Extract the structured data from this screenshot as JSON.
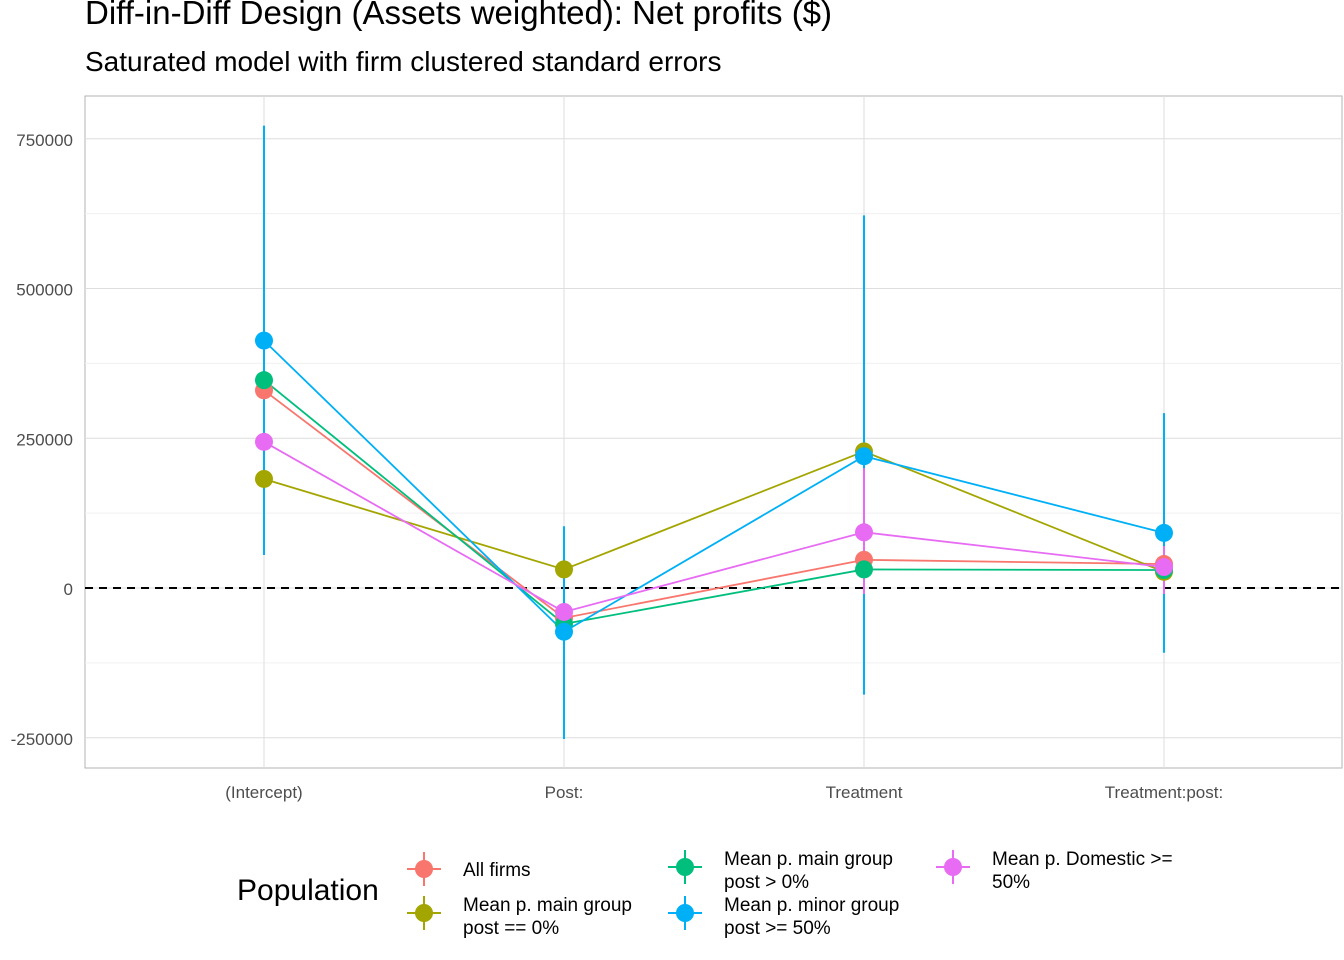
{
  "chart_data": {
    "type": "scatter",
    "title": "Diff-in-Diff Design (Assets weighted): Net profits  ($)",
    "subtitle": "Saturated model with firm clustered standard errors",
    "xlabel": "",
    "ylabel": "",
    "categories": [
      "(Intercept)",
      "Post:",
      "Treatment",
      "Treatment:post:"
    ],
    "ylim": [
      -300000,
      820000
    ],
    "yticks": [
      -250000,
      0,
      250000,
      500000,
      750000
    ],
    "ytick_labels": [
      "-250000",
      "0",
      "250000",
      "500000",
      "750000"
    ],
    "grid": true,
    "reference_line": 0,
    "legend": {
      "title": "Population",
      "position": "bottom"
    },
    "series": [
      {
        "name": "All firms",
        "color": "#F8766D",
        "values": [
          330000,
          -50000,
          47000,
          40000
        ],
        "ci_low": [
          null,
          null,
          null,
          null
        ],
        "ci_high": [
          null,
          null,
          null,
          null
        ]
      },
      {
        "name": "Mean p. main group\npost == 0%",
        "color": "#A3A500",
        "values": [
          182000,
          31000,
          228000,
          27000
        ],
        "ci_low": [
          null,
          null,
          null,
          null
        ],
        "ci_high": [
          null,
          null,
          null,
          null
        ]
      },
      {
        "name": "Mean p. main group\npost > 0%",
        "color": "#00BF7D",
        "values": [
          347000,
          -60000,
          31000,
          30000
        ],
        "ci_low": [
          null,
          null,
          null,
          null
        ],
        "ci_high": [
          null,
          null,
          null,
          null
        ]
      },
      {
        "name": "Mean p. minor group\npost >= 50%",
        "color": "#00B0F6",
        "values": [
          413000,
          -73000,
          220000,
          92000
        ],
        "ci_low": [
          55000,
          -252000,
          -178000,
          -108000
        ],
        "ci_high": [
          772000,
          103000,
          622000,
          292000
        ]
      },
      {
        "name": "Mean p. Domestic >=\n50%",
        "color": "#E76BF3",
        "values": [
          244000,
          -40000,
          93000,
          35000
        ],
        "ci_low": [
          null,
          null,
          -10000,
          -10000
        ],
        "ci_high": [
          null,
          null,
          200000,
          70000
        ]
      }
    ]
  }
}
